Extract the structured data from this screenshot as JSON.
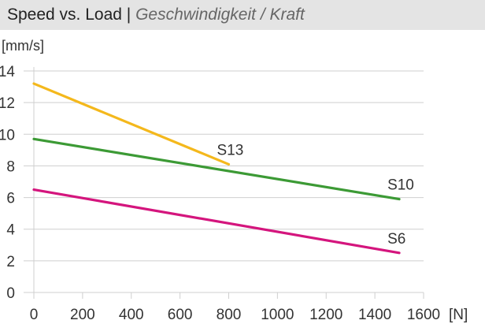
{
  "chart_data": {
    "type": "line",
    "title": "Speed vs. Load",
    "title_separator": " | ",
    "subtitle": "Geschwindigkeit / Kraft",
    "xlabel": "[N]",
    "ylabel": "[mm/s]",
    "xlim": [
      0,
      1600
    ],
    "ylim": [
      0,
      14
    ],
    "xticks": [
      0,
      200,
      400,
      600,
      800,
      1000,
      1200,
      1400,
      1600
    ],
    "yticks": [
      0,
      2,
      4,
      6,
      8,
      10,
      12,
      14
    ],
    "grid": true,
    "series": [
      {
        "name": "S13",
        "color": "#f4b81c",
        "x": [
          0,
          800
        ],
        "y": [
          13.2,
          8.1
        ]
      },
      {
        "name": "S10",
        "color": "#3c9a35",
        "x": [
          0,
          1500
        ],
        "y": [
          9.7,
          5.9
        ]
      },
      {
        "name": "S6",
        "color": "#d4157d",
        "x": [
          0,
          1500
        ],
        "y": [
          6.5,
          2.5
        ]
      }
    ]
  }
}
